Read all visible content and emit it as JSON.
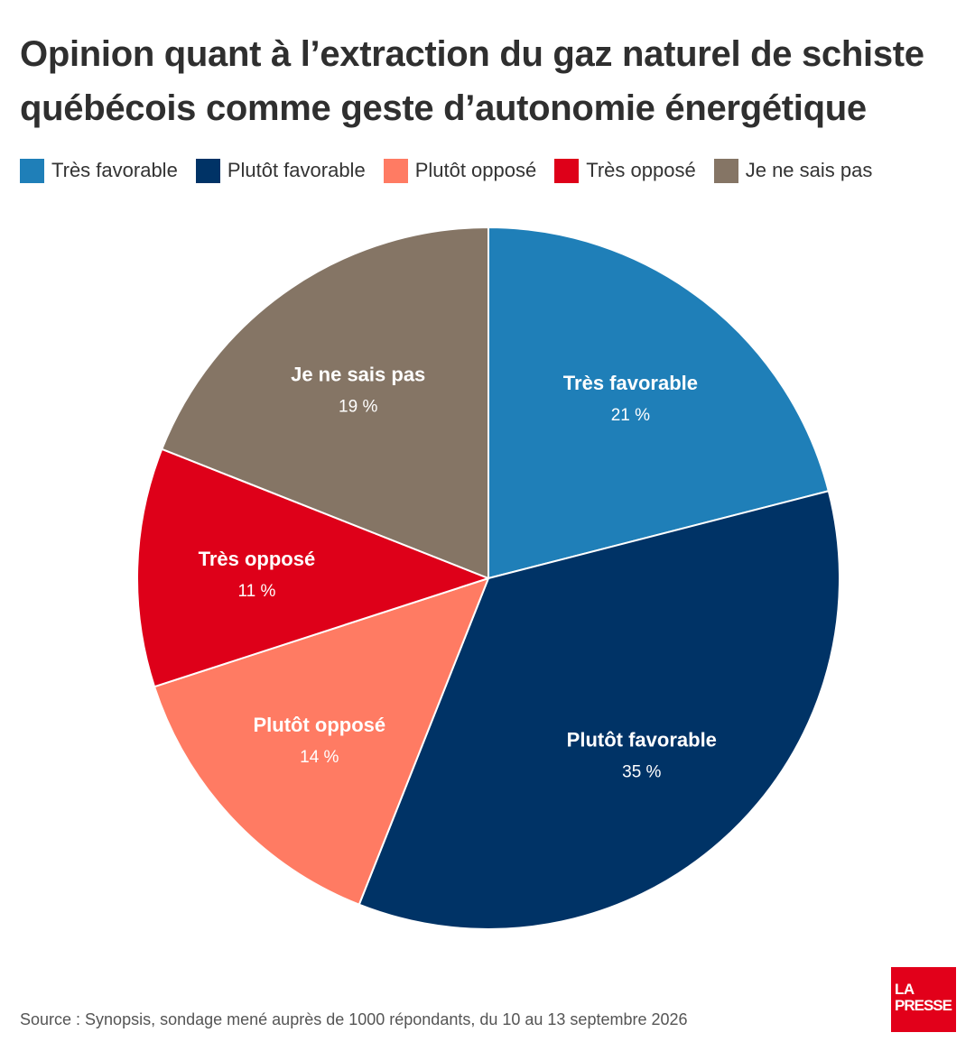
{
  "title": "Opinion quant à l’extraction du gaz naturel de schiste québécois comme geste d’autonomie énergétique",
  "legend": [
    {
      "label": "Très favorable",
      "color": "#1f7fb8"
    },
    {
      "label": "Plutôt favorable",
      "color": "#003366"
    },
    {
      "label": "Plutôt opposé",
      "color": "#ff7b63"
    },
    {
      "label": "Très opposé",
      "color": "#de0019"
    },
    {
      "label": "Je ne sais pas",
      "color": "#857565"
    }
  ],
  "chart_data": {
    "type": "pie",
    "title": "Opinion quant à l’extraction du gaz naturel de schiste québécois comme geste d’autonomie énergétique",
    "legend_position": "top",
    "start": "top, clockwise",
    "slices": [
      {
        "label": "Très favorable",
        "value": 21,
        "display": "21 %",
        "color": "#1f7fb8"
      },
      {
        "label": "Plutôt favorable",
        "value": 35,
        "display": "35 %",
        "color": "#003366"
      },
      {
        "label": "Plutôt opposé",
        "value": 14,
        "display": "14 %",
        "color": "#ff7b63"
      },
      {
        "label": "Très opposé",
        "value": 11,
        "display": "11 %",
        "color": "#de0019"
      },
      {
        "label": "Je ne sais pas",
        "value": 19,
        "display": "19 %",
        "color": "#857565"
      }
    ]
  },
  "source": "Source : Synopsis, sondage mené auprès de 1000 répondants, du 10 au 13 septembre 2026",
  "logo": {
    "line1": "LA",
    "line2": "PRESSE",
    "color": "#e2001a"
  }
}
